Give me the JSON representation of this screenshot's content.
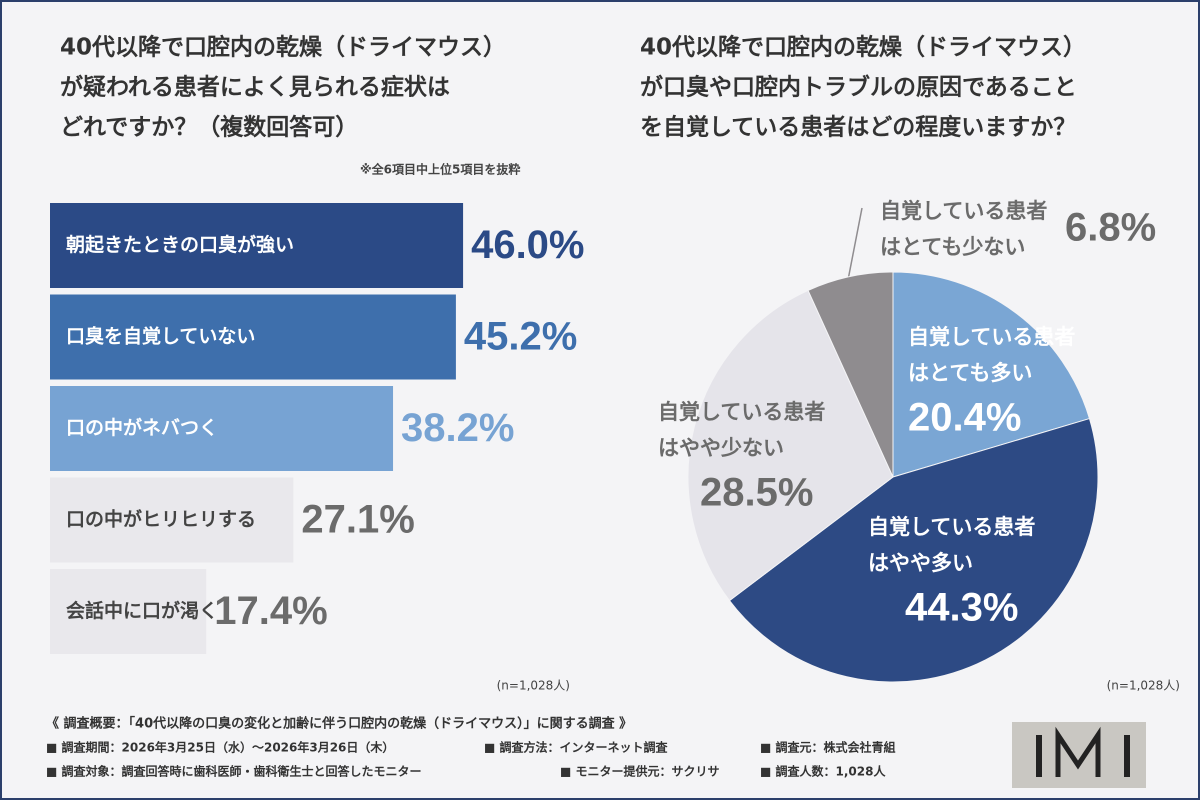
{
  "chart_data": [
    {
      "type": "bar",
      "title": [
        "40代以降で口腔内の乾燥（ドライマウス）",
        "が疑われる患者によく見られる症状は",
        "どれですか？（複数回答可）"
      ],
      "note": "※全6項目中上位5項目を抜粋",
      "categories": [
        "朝起きたときの口臭が強い",
        "口臭を自覚していない",
        "口の中がネバつく",
        "口の中がヒリヒリする",
        "会話中に口が渇く"
      ],
      "values": [
        46.0,
        45.2,
        38.2,
        27.1,
        17.4
      ],
      "value_labels": [
        "46.0%",
        "45.2%",
        "38.2%",
        "27.1%",
        "17.4%"
      ],
      "colors": [
        "#2b4a86",
        "#3e6fac",
        "#77a3d3",
        "#e9e8ec",
        "#e9e8ec"
      ],
      "text_colors": [
        "#ffffff",
        "#ffffff",
        "#ffffff",
        "#444444",
        "#444444"
      ],
      "label_colors": [
        "#2b4a86",
        "#3e6fac",
        "#77a3d3",
        "#6b6b6b",
        "#6b6b6b"
      ],
      "sample": "(n=1,028人)"
    },
    {
      "type": "pie",
      "title": [
        "40代以降で口腔内の乾燥（ドライマウス）",
        "が口臭や口腔内トラブルの原因であること",
        "を自覚している患者はどの程度いますか？"
      ],
      "categories": [
        [
          "自覚している患者",
          "はとても多い"
        ],
        [
          "自覚している患者",
          "はやや多い"
        ],
        [
          "自覚している患者",
          "はやや少ない"
        ],
        [
          "自覚している患者",
          "はとても少ない"
        ]
      ],
      "values": [
        20.4,
        44.3,
        28.5,
        6.8
      ],
      "value_labels": [
        "20.4%",
        "44.3%",
        "28.5%",
        "6.8%"
      ],
      "colors": [
        "#7aa6d4",
        "#2d4a84",
        "#e5e4ea",
        "#8f8c8f"
      ],
      "text_colors": [
        "#ffffff",
        "#ffffff",
        "#6b6b6b",
        "#6b6b6b"
      ],
      "sample": "(n=1,028人)"
    }
  ],
  "footer": {
    "title": "《 調査概要：「40代以降の口臭の変化と加齢に伴う口腔内の乾燥（ドライマウス）」に関する調査 》",
    "items": [
      "■ 調査期間：2026年3月25日（水）～2026年3月26日（木）",
      "■ 調査方法：インターネット調査",
      "■ 調査元：株式会社青組",
      "■ 調査対象：調査回答時に歯科医師・歯科衛生士と回答したモニター",
      "■ モニター提供元：サクリサ",
      "■ 調査人数：1,028人"
    ]
  }
}
